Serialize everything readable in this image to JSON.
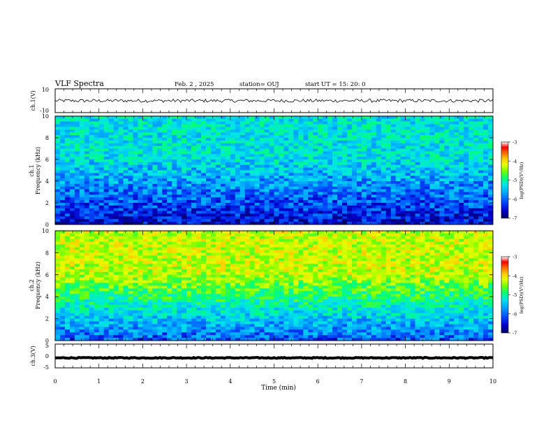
{
  "header": {
    "title": "VLF Spectra",
    "date": "Feb. 2 , 2025",
    "station": "station= OUJ",
    "start": "start  UT =   15: 20: 0"
  },
  "colors": {
    "frame": "#000000",
    "cmap": [
      "#000064",
      "#0000cd",
      "#0050ff",
      "#00aaff",
      "#00e6e6",
      "#00ff78",
      "#78ff00",
      "#e6ff00",
      "#ffc800",
      "#ff6400",
      "#ff0000",
      "#ffffff"
    ]
  },
  "chart_data": [
    {
      "type": "line",
      "panel": "ch1-waveform",
      "ylabel": "ch.1(V)",
      "ylim": [
        -10,
        10
      ],
      "yticks": [
        "10",
        "-10"
      ],
      "xlim": [
        0,
        10
      ],
      "series": [
        {
          "level": 0,
          "noise_amplitude": 1.4
        }
      ]
    },
    {
      "type": "heatmap",
      "panel": "ch1-spectrogram",
      "ylabel": "ch.1\nFrequency (kHz)",
      "ylim": [
        0,
        10
      ],
      "yticks": [
        "0",
        "2",
        "4",
        "6",
        "8",
        "10"
      ],
      "xlim": [
        0,
        10
      ],
      "dominant_log_psd": -5.4,
      "low_band_log_psd": -6.6,
      "colorbar": {
        "label": "log(PSD)(V²/Hz)",
        "range": [
          -7,
          -3
        ],
        "ticks": [
          "-3",
          "-4",
          "-5",
          "-6",
          "-7"
        ]
      }
    },
    {
      "type": "heatmap",
      "panel": "ch2-spectrogram",
      "ylabel": "ch.2\nFrequency (kHz)",
      "ylim": [
        0,
        10
      ],
      "yticks": [
        "0",
        "2",
        "4",
        "6",
        "8",
        "10"
      ],
      "xlim": [
        0,
        10
      ],
      "dominant_log_psd": -4.3,
      "low_band_log_psd": -6.2,
      "colorbar": {
        "label": "log(PSD)(V²/Hz)",
        "range": [
          -7,
          -3
        ],
        "ticks": [
          "-3",
          "-4",
          "-5",
          "-6",
          "-7"
        ]
      }
    },
    {
      "type": "line",
      "panel": "ch3-waveform",
      "ylabel": "ch.3(V)",
      "ylim": [
        -5,
        5
      ],
      "yticks": [
        "5",
        "0",
        "-5"
      ],
      "xlim": [
        0,
        10
      ],
      "series": [
        {
          "level": -0.8,
          "noise_amplitude": 0.2
        }
      ]
    }
  ],
  "xaxis": {
    "label": "Time (min)",
    "ticks": [
      "0",
      "1",
      "2",
      "3",
      "4",
      "5",
      "6",
      "7",
      "8",
      "9",
      "10"
    ]
  }
}
